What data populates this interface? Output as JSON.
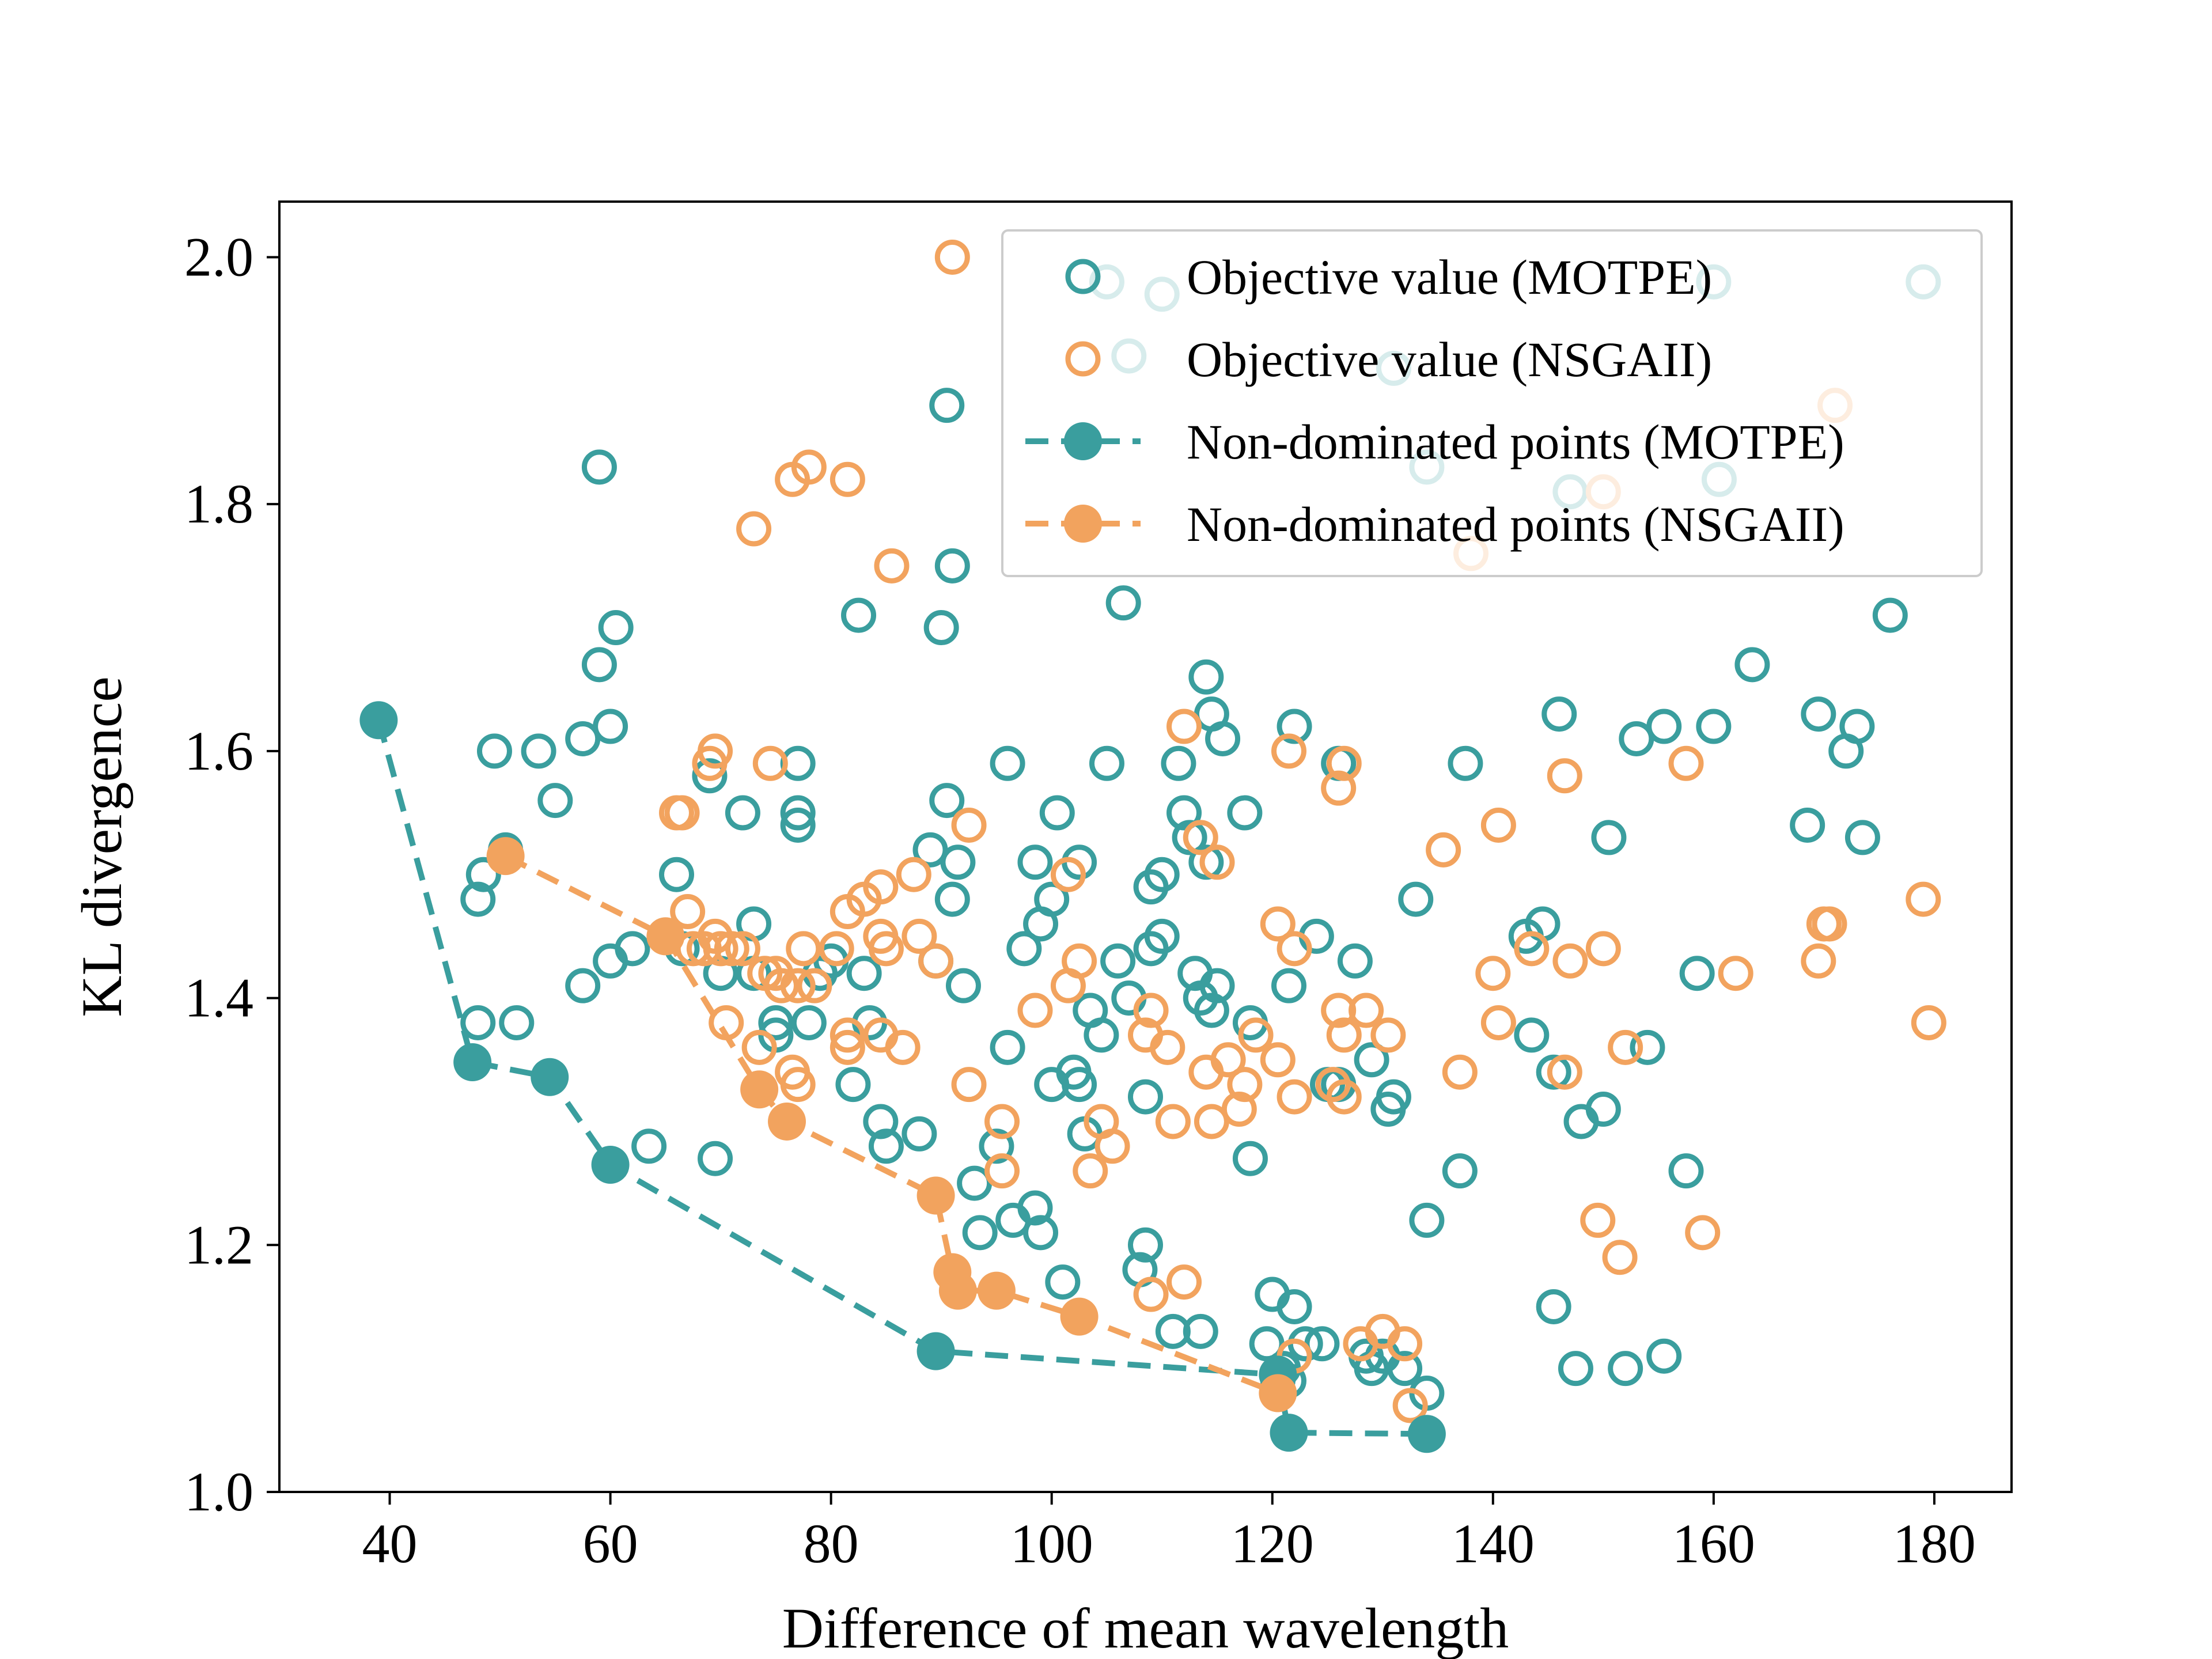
{
  "chart_data": {
    "type": "scatter",
    "title": "",
    "xlabel": "Difference of mean wavelength",
    "ylabel": "KL divergence",
    "xlim": [
      30,
      187
    ],
    "ylim": [
      1.0,
      2.045
    ],
    "xticks": [
      40,
      60,
      80,
      100,
      120,
      140,
      160,
      180
    ],
    "yticks": [
      1.0,
      1.2,
      1.4,
      1.6,
      1.8,
      2.0
    ],
    "xtick_labels": [
      "40",
      "60",
      "80",
      "100",
      "120",
      "140",
      "160",
      "180"
    ],
    "ytick_labels": [
      "1.0",
      "1.2",
      "1.4",
      "1.6",
      "1.8",
      "2.0"
    ],
    "grid": false,
    "legend_position": "top-right",
    "colors": {
      "motpe": "#3a9e9e",
      "nsgaii": "#f2a35e"
    },
    "series": [
      {
        "name": "Objective value (MOTPE)",
        "style": "open-circle",
        "color": "#3a9e9e",
        "points": [
          [
            59,
            1.83
          ],
          [
            60.5,
            1.7
          ],
          [
            59,
            1.67
          ],
          [
            60,
            1.62
          ],
          [
            49.5,
            1.6
          ],
          [
            53.5,
            1.6
          ],
          [
            57.5,
            1.61
          ],
          [
            55,
            1.56
          ],
          [
            50.5,
            1.52
          ],
          [
            48.5,
            1.5
          ],
          [
            48,
            1.48
          ],
          [
            48,
            1.38
          ],
          [
            51.5,
            1.38
          ],
          [
            57.5,
            1.41
          ],
          [
            60,
            1.43
          ],
          [
            62,
            1.44
          ],
          [
            63.5,
            1.28
          ],
          [
            66,
            1.5
          ],
          [
            66.5,
            1.44
          ],
          [
            69,
            1.58
          ],
          [
            69.5,
            1.27
          ],
          [
            70,
            1.42
          ],
          [
            72,
            1.55
          ],
          [
            73,
            1.46
          ],
          [
            73,
            1.42
          ],
          [
            75,
            1.37
          ],
          [
            75,
            1.38
          ],
          [
            77,
            1.59
          ],
          [
            77,
            1.55
          ],
          [
            77,
            1.54
          ],
          [
            78,
            1.38
          ],
          [
            79,
            1.42
          ],
          [
            80,
            1.43
          ],
          [
            82,
            1.33
          ],
          [
            82.5,
            1.71
          ],
          [
            83,
            1.42
          ],
          [
            83.5,
            1.38
          ],
          [
            84.5,
            1.3
          ],
          [
            85,
            1.28
          ],
          [
            88,
            1.29
          ],
          [
            89,
            1.52
          ],
          [
            89.5,
            1.43
          ],
          [
            90,
            1.7
          ],
          [
            90.5,
            1.56
          ],
          [
            90.5,
            1.88
          ],
          [
            91,
            1.75
          ],
          [
            91,
            1.48
          ],
          [
            91.5,
            1.51
          ],
          [
            92,
            1.41
          ],
          [
            93,
            1.25
          ],
          [
            93.5,
            1.21
          ],
          [
            95,
            1.28
          ],
          [
            96,
            1.59
          ],
          [
            96,
            1.36
          ],
          [
            96.5,
            1.22
          ],
          [
            97.5,
            1.44
          ],
          [
            98.5,
            1.51
          ],
          [
            98.5,
            1.23
          ],
          [
            99,
            1.46
          ],
          [
            99,
            1.21
          ],
          [
            100,
            1.48
          ],
          [
            100,
            1.33
          ],
          [
            100.5,
            1.55
          ],
          [
            101,
            1.17
          ],
          [
            102,
            1.34
          ],
          [
            102.5,
            1.51
          ],
          [
            102.5,
            1.33
          ],
          [
            103,
            1.29
          ],
          [
            103.5,
            1.39
          ],
          [
            104.5,
            1.37
          ],
          [
            105,
            1.59
          ],
          [
            106,
            1.43
          ],
          [
            106.5,
            1.72
          ],
          [
            107,
            1.4
          ],
          [
            108,
            1.18
          ],
          [
            108.5,
            1.2
          ],
          [
            108.5,
            1.32
          ],
          [
            109,
            1.44
          ],
          [
            109,
            1.49
          ],
          [
            110,
            1.45
          ],
          [
            110,
            1.5
          ],
          [
            111,
            1.13
          ],
          [
            111.5,
            1.59
          ],
          [
            112,
            1.55
          ],
          [
            112.5,
            1.53
          ],
          [
            113,
            1.42
          ],
          [
            113.5,
            1.4
          ],
          [
            113.5,
            1.13
          ],
          [
            114,
            1.66
          ],
          [
            114,
            1.51
          ],
          [
            114.5,
            1.63
          ],
          [
            114.5,
            1.39
          ],
          [
            115,
            1.41
          ],
          [
            115.5,
            1.61
          ],
          [
            117.5,
            1.55
          ],
          [
            118,
            1.38
          ],
          [
            118,
            1.27
          ],
          [
            119.5,
            1.12
          ],
          [
            120,
            1.16
          ],
          [
            120.5,
            1.09
          ],
          [
            121,
            1.1
          ],
          [
            121.5,
            1.41
          ],
          [
            121.5,
            1.09
          ],
          [
            122,
            1.15
          ],
          [
            122,
            1.62
          ],
          [
            123,
            1.12
          ],
          [
            124,
            1.45
          ],
          [
            124.5,
            1.12
          ],
          [
            125,
            1.33
          ],
          [
            126,
            1.33
          ],
          [
            126,
            1.59
          ],
          [
            127.5,
            1.43
          ],
          [
            128.5,
            1.11
          ],
          [
            129,
            1.35
          ],
          [
            129,
            1.1
          ],
          [
            130,
            1.11
          ],
          [
            130.5,
            1.31
          ],
          [
            131,
            1.32
          ],
          [
            131,
            1.91
          ],
          [
            132,
            1.1
          ],
          [
            133,
            1.48
          ],
          [
            134,
            1.22
          ],
          [
            134,
            1.83
          ],
          [
            134,
            1.08
          ],
          [
            137,
            1.26
          ],
          [
            137.5,
            1.59
          ],
          [
            143,
            1.45
          ],
          [
            143.5,
            1.37
          ],
          [
            144.5,
            1.46
          ],
          [
            145.5,
            1.34
          ],
          [
            145.5,
            1.15
          ],
          [
            146,
            1.63
          ],
          [
            147,
            1.81
          ],
          [
            147.5,
            1.1
          ],
          [
            148,
            1.3
          ],
          [
            150,
            1.31
          ],
          [
            150.5,
            1.53
          ],
          [
            152,
            1.1
          ],
          [
            153,
            1.61
          ],
          [
            154,
            1.36
          ],
          [
            155.5,
            1.62
          ],
          [
            155.5,
            1.11
          ],
          [
            157.5,
            1.26
          ],
          [
            158.5,
            1.42
          ],
          [
            160,
            1.62
          ],
          [
            160,
            1.98
          ],
          [
            160.5,
            1.82
          ],
          [
            163.5,
            1.67
          ],
          [
            168.5,
            1.54
          ],
          [
            169.5,
            1.63
          ],
          [
            172,
            1.6
          ],
          [
            173,
            1.62
          ],
          [
            173.5,
            1.53
          ],
          [
            176,
            1.71
          ],
          [
            179,
            1.98
          ],
          [
            105,
            1.98
          ],
          [
            110,
            1.97
          ],
          [
            107,
            1.92
          ]
        ]
      },
      {
        "name": "Objective value (NSGAII)",
        "style": "open-circle",
        "color": "#f2a35e",
        "points": [
          [
            91,
            2.0
          ],
          [
            76.5,
            1.82
          ],
          [
            78,
            1.83
          ],
          [
            81.5,
            1.82
          ],
          [
            73,
            1.78
          ],
          [
            85.5,
            1.75
          ],
          [
            69,
            1.59
          ],
          [
            69.5,
            1.6
          ],
          [
            74.5,
            1.59
          ],
          [
            66,
            1.55
          ],
          [
            66.5,
            1.55
          ],
          [
            67,
            1.47
          ],
          [
            67.5,
            1.44
          ],
          [
            68.5,
            1.44
          ],
          [
            69.5,
            1.45
          ],
          [
            70,
            1.44
          ],
          [
            70.5,
            1.38
          ],
          [
            71,
            1.44
          ],
          [
            72,
            1.44
          ],
          [
            73.5,
            1.36
          ],
          [
            74,
            1.42
          ],
          [
            75,
            1.42
          ],
          [
            75.5,
            1.41
          ],
          [
            76.5,
            1.34
          ],
          [
            77,
            1.41
          ],
          [
            77,
            1.33
          ],
          [
            77.5,
            1.44
          ],
          [
            78.5,
            1.41
          ],
          [
            80.5,
            1.44
          ],
          [
            81.5,
            1.37
          ],
          [
            81.5,
            1.36
          ],
          [
            81.5,
            1.47
          ],
          [
            83,
            1.48
          ],
          [
            84.5,
            1.49
          ],
          [
            84.5,
            1.37
          ],
          [
            84.5,
            1.45
          ],
          [
            85,
            1.44
          ],
          [
            86.5,
            1.36
          ],
          [
            87.5,
            1.5
          ],
          [
            88,
            1.45
          ],
          [
            89.5,
            1.43
          ],
          [
            92.5,
            1.54
          ],
          [
            92.5,
            1.33
          ],
          [
            95.5,
            1.3
          ],
          [
            95.5,
            1.26
          ],
          [
            98.5,
            1.39
          ],
          [
            101.5,
            1.41
          ],
          [
            101.5,
            1.5
          ],
          [
            102.5,
            1.43
          ],
          [
            103.5,
            1.26
          ],
          [
            104.5,
            1.3
          ],
          [
            105.5,
            1.28
          ],
          [
            108.5,
            1.37
          ],
          [
            109,
            1.16
          ],
          [
            109,
            1.39
          ],
          [
            110.5,
            1.36
          ],
          [
            111,
            1.3
          ],
          [
            112,
            1.62
          ],
          [
            112,
            1.17
          ],
          [
            113.5,
            1.53
          ],
          [
            114,
            1.34
          ],
          [
            114.5,
            1.3
          ],
          [
            115,
            1.51
          ],
          [
            116,
            1.35
          ],
          [
            117,
            1.31
          ],
          [
            117.5,
            1.33
          ],
          [
            118.5,
            1.37
          ],
          [
            120.5,
            1.46
          ],
          [
            120.5,
            1.35
          ],
          [
            121.5,
            1.6
          ],
          [
            122,
            1.32
          ],
          [
            122,
            1.44
          ],
          [
            122,
            1.11
          ],
          [
            125.5,
            1.33
          ],
          [
            126,
            1.57
          ],
          [
            126,
            1.39
          ],
          [
            126.5,
            1.37
          ],
          [
            126.5,
            1.59
          ],
          [
            126.5,
            1.32
          ],
          [
            128,
            1.12
          ],
          [
            128.5,
            1.39
          ],
          [
            130,
            1.13
          ],
          [
            130.5,
            1.37
          ],
          [
            132,
            1.12
          ],
          [
            132.5,
            1.07
          ],
          [
            135.5,
            1.52
          ],
          [
            137,
            1.34
          ],
          [
            138,
            1.76
          ],
          [
            140,
            1.42
          ],
          [
            140.5,
            1.54
          ],
          [
            140.5,
            1.38
          ],
          [
            143.5,
            1.44
          ],
          [
            146.5,
            1.34
          ],
          [
            146.5,
            1.58
          ],
          [
            147,
            1.43
          ],
          [
            149.5,
            1.22
          ],
          [
            150,
            1.44
          ],
          [
            150,
            1.81
          ],
          [
            151.5,
            1.19
          ],
          [
            152,
            1.36
          ],
          [
            157.5,
            1.59
          ],
          [
            159,
            1.21
          ],
          [
            162,
            1.42
          ],
          [
            169.5,
            1.43
          ],
          [
            170,
            1.46
          ],
          [
            170.5,
            1.46
          ],
          [
            171,
            1.88
          ],
          [
            179,
            1.48
          ],
          [
            179.5,
            1.38
          ]
        ]
      },
      {
        "name": "Non-dominated points (MOTPE)",
        "style": "filled-circle-dashed-line",
        "color": "#3a9e9e",
        "points": [
          [
            39,
            1.625
          ],
          [
            47.5,
            1.348
          ],
          [
            54.5,
            1.336
          ],
          [
            60,
            1.265
          ],
          [
            89.5,
            1.114
          ],
          [
            120.5,
            1.095
          ],
          [
            121.5,
            1.048
          ],
          [
            134,
            1.047
          ]
        ]
      },
      {
        "name": "Non-dominated points (NSGAII)",
        "style": "filled-circle-dashed-line",
        "color": "#f2a35e",
        "points": [
          [
            50.5,
            1.515
          ],
          [
            65,
            1.45
          ],
          [
            73.5,
            1.326
          ],
          [
            76,
            1.3
          ],
          [
            89.5,
            1.24
          ],
          [
            91,
            1.178
          ],
          [
            91.5,
            1.163
          ],
          [
            95,
            1.163
          ],
          [
            102.5,
            1.142
          ],
          [
            120.5,
            1.08
          ]
        ]
      }
    ]
  }
}
